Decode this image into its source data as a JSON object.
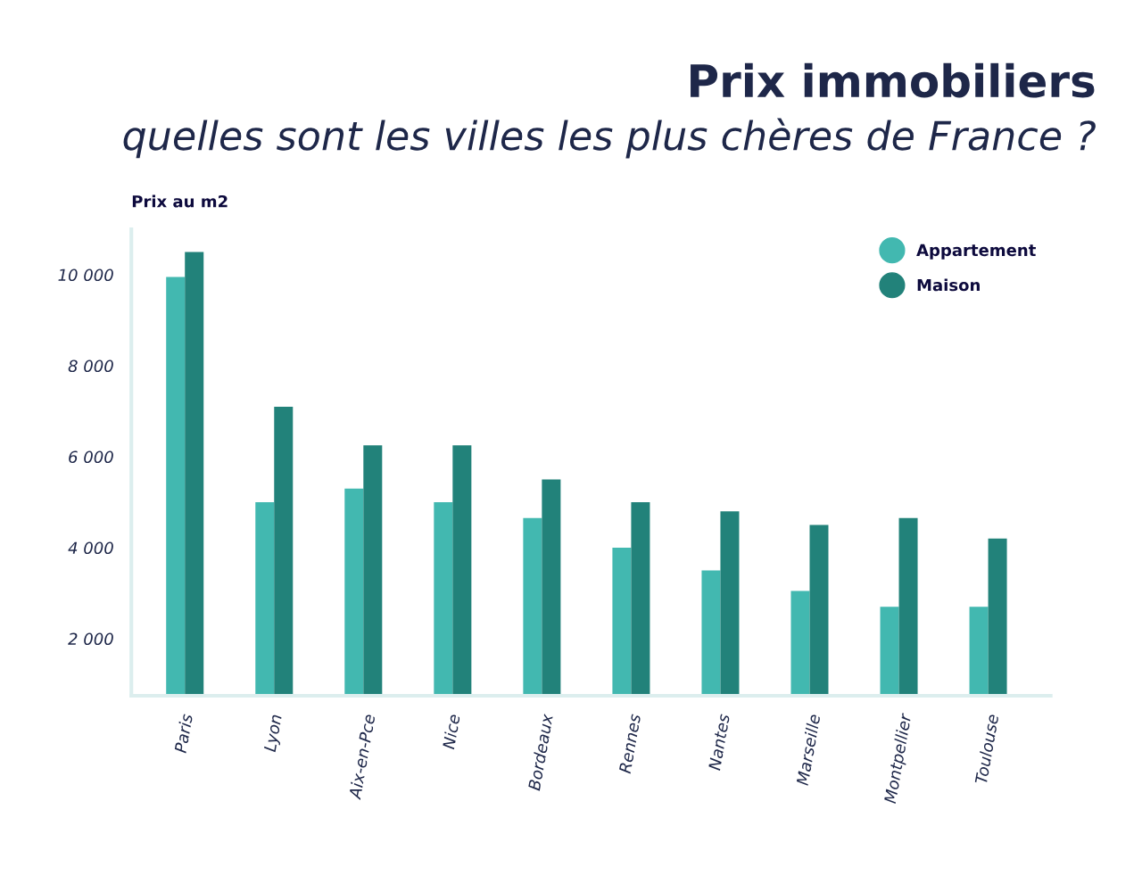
{
  "chart_data": {
    "type": "bar",
    "title": "Prix immobiliers",
    "subtitle": "quelles sont les villes les plus chères de France ?",
    "ylabel": "Prix au m2",
    "categories": [
      "Paris",
      "Lyon",
      "Aix-en-Pce",
      "Nice",
      "Bordeaux",
      "Rennes",
      "Nantes",
      "Marseille",
      "Montpellier",
      "Toulouse"
    ],
    "series": [
      {
        "name": "Appartement",
        "color": "#42b8b0",
        "values": [
          9950,
          5000,
          5300,
          5000,
          4650,
          4000,
          3500,
          3050,
          2700,
          2700
        ]
      },
      {
        "name": "Maison",
        "color": "#22827a",
        "values": [
          10500,
          7100,
          6250,
          6250,
          5500,
          5000,
          4800,
          4500,
          4650,
          4200
        ]
      }
    ],
    "ylim": [
      745,
      11000
    ],
    "yticks": [
      {
        "value": 2000,
        "label": "2 000"
      },
      {
        "value": 4000,
        "label": "4 000"
      },
      {
        "value": 6000,
        "label": "6 000"
      },
      {
        "value": 8000,
        "label": "8 000"
      },
      {
        "value": 10000,
        "label": "10 000"
      }
    ],
    "grid": false,
    "legend": "top right"
  }
}
